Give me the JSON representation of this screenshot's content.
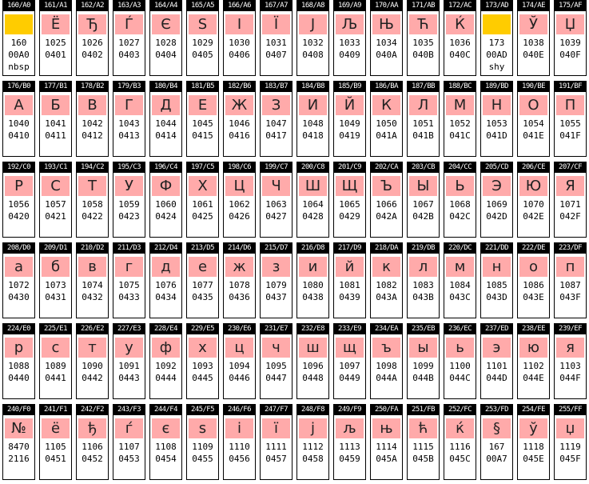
{
  "cells": [
    {
      "header": "160/A0",
      "glyph": "",
      "dec": "160",
      "hex": "00A0",
      "name": "nbsp",
      "special": true
    },
    {
      "header": "161/A1",
      "glyph": "Ё",
      "dec": "1025",
      "hex": "0401",
      "name": ""
    },
    {
      "header": "162/A2",
      "glyph": "Ђ",
      "dec": "1026",
      "hex": "0402",
      "name": ""
    },
    {
      "header": "163/A3",
      "glyph": "Ѓ",
      "dec": "1027",
      "hex": "0403",
      "name": ""
    },
    {
      "header": "164/A4",
      "glyph": "Є",
      "dec": "1028",
      "hex": "0404",
      "name": ""
    },
    {
      "header": "165/A5",
      "glyph": "S",
      "dec": "1029",
      "hex": "0405",
      "name": ""
    },
    {
      "header": "166/A6",
      "glyph": "І",
      "dec": "1030",
      "hex": "0406",
      "name": ""
    },
    {
      "header": "167/A7",
      "glyph": "Ї",
      "dec": "1031",
      "hex": "0407",
      "name": ""
    },
    {
      "header": "168/A8",
      "glyph": "J",
      "dec": "1032",
      "hex": "0408",
      "name": ""
    },
    {
      "header": "169/A9",
      "glyph": "Љ",
      "dec": "1033",
      "hex": "0409",
      "name": ""
    },
    {
      "header": "170/AA",
      "glyph": "Њ",
      "dec": "1034",
      "hex": "040A",
      "name": ""
    },
    {
      "header": "171/AB",
      "glyph": "Ћ",
      "dec": "1035",
      "hex": "040B",
      "name": ""
    },
    {
      "header": "172/AC",
      "glyph": "Ќ",
      "dec": "1036",
      "hex": "040C",
      "name": ""
    },
    {
      "header": "173/AD",
      "glyph": "",
      "dec": "173",
      "hex": "00AD",
      "name": "shy",
      "special": true
    },
    {
      "header": "174/AE",
      "glyph": "Ў",
      "dec": "1038",
      "hex": "040E",
      "name": ""
    },
    {
      "header": "175/AF",
      "glyph": "Џ",
      "dec": "1039",
      "hex": "040F",
      "name": ""
    },
    {
      "header": "176/B0",
      "glyph": "А",
      "dec": "1040",
      "hex": "0410",
      "name": ""
    },
    {
      "header": "177/B1",
      "glyph": "Б",
      "dec": "1041",
      "hex": "0411",
      "name": ""
    },
    {
      "header": "178/B2",
      "glyph": "В",
      "dec": "1042",
      "hex": "0412",
      "name": ""
    },
    {
      "header": "179/B3",
      "glyph": "Г",
      "dec": "1043",
      "hex": "0413",
      "name": ""
    },
    {
      "header": "180/B4",
      "glyph": "Д",
      "dec": "1044",
      "hex": "0414",
      "name": ""
    },
    {
      "header": "181/B5",
      "glyph": "Е",
      "dec": "1045",
      "hex": "0415",
      "name": ""
    },
    {
      "header": "182/B6",
      "glyph": "Ж",
      "dec": "1046",
      "hex": "0416",
      "name": ""
    },
    {
      "header": "183/B7",
      "glyph": "З",
      "dec": "1047",
      "hex": "0417",
      "name": ""
    },
    {
      "header": "184/B8",
      "glyph": "И",
      "dec": "1048",
      "hex": "0418",
      "name": ""
    },
    {
      "header": "185/B9",
      "glyph": "Й",
      "dec": "1049",
      "hex": "0419",
      "name": ""
    },
    {
      "header": "186/BA",
      "glyph": "К",
      "dec": "1050",
      "hex": "041A",
      "name": ""
    },
    {
      "header": "187/BB",
      "glyph": "Л",
      "dec": "1051",
      "hex": "041B",
      "name": ""
    },
    {
      "header": "188/BC",
      "glyph": "М",
      "dec": "1052",
      "hex": "041C",
      "name": ""
    },
    {
      "header": "189/BD",
      "glyph": "Н",
      "dec": "1053",
      "hex": "041D",
      "name": ""
    },
    {
      "header": "190/BE",
      "glyph": "О",
      "dec": "1054",
      "hex": "041E",
      "name": ""
    },
    {
      "header": "191/BF",
      "glyph": "П",
      "dec": "1055",
      "hex": "041F",
      "name": ""
    },
    {
      "header": "192/C0",
      "glyph": "Р",
      "dec": "1056",
      "hex": "0420",
      "name": ""
    },
    {
      "header": "193/C1",
      "glyph": "С",
      "dec": "1057",
      "hex": "0421",
      "name": ""
    },
    {
      "header": "194/C2",
      "glyph": "Т",
      "dec": "1058",
      "hex": "0422",
      "name": ""
    },
    {
      "header": "195/C3",
      "glyph": "У",
      "dec": "1059",
      "hex": "0423",
      "name": ""
    },
    {
      "header": "196/C4",
      "glyph": "Ф",
      "dec": "1060",
      "hex": "0424",
      "name": ""
    },
    {
      "header": "197/C5",
      "glyph": "Х",
      "dec": "1061",
      "hex": "0425",
      "name": ""
    },
    {
      "header": "198/C6",
      "glyph": "Ц",
      "dec": "1062",
      "hex": "0426",
      "name": ""
    },
    {
      "header": "199/C7",
      "glyph": "Ч",
      "dec": "1063",
      "hex": "0427",
      "name": ""
    },
    {
      "header": "200/C8",
      "glyph": "Ш",
      "dec": "1064",
      "hex": "0428",
      "name": ""
    },
    {
      "header": "201/C9",
      "glyph": "Щ",
      "dec": "1065",
      "hex": "0429",
      "name": ""
    },
    {
      "header": "202/CA",
      "glyph": "Ъ",
      "dec": "1066",
      "hex": "042A",
      "name": ""
    },
    {
      "header": "203/CB",
      "glyph": "Ы",
      "dec": "1067",
      "hex": "042B",
      "name": ""
    },
    {
      "header": "204/CC",
      "glyph": "Ь",
      "dec": "1068",
      "hex": "042C",
      "name": ""
    },
    {
      "header": "205/CD",
      "glyph": "Э",
      "dec": "1069",
      "hex": "042D",
      "name": ""
    },
    {
      "header": "206/CE",
      "glyph": "Ю",
      "dec": "1070",
      "hex": "042E",
      "name": ""
    },
    {
      "header": "207/CF",
      "glyph": "Я",
      "dec": "1071",
      "hex": "042F",
      "name": ""
    },
    {
      "header": "208/D0",
      "glyph": "а",
      "dec": "1072",
      "hex": "0430",
      "name": ""
    },
    {
      "header": "209/D1",
      "glyph": "б",
      "dec": "1073",
      "hex": "0431",
      "name": ""
    },
    {
      "header": "210/D2",
      "glyph": "в",
      "dec": "1074",
      "hex": "0432",
      "name": ""
    },
    {
      "header": "211/D3",
      "glyph": "г",
      "dec": "1075",
      "hex": "0433",
      "name": ""
    },
    {
      "header": "212/D4",
      "glyph": "д",
      "dec": "1076",
      "hex": "0434",
      "name": ""
    },
    {
      "header": "213/D5",
      "glyph": "е",
      "dec": "1077",
      "hex": "0435",
      "name": ""
    },
    {
      "header": "214/D6",
      "glyph": "ж",
      "dec": "1078",
      "hex": "0436",
      "name": ""
    },
    {
      "header": "215/D7",
      "glyph": "з",
      "dec": "1079",
      "hex": "0437",
      "name": ""
    },
    {
      "header": "216/D8",
      "glyph": "и",
      "dec": "1080",
      "hex": "0438",
      "name": ""
    },
    {
      "header": "217/D9",
      "glyph": "й",
      "dec": "1081",
      "hex": "0439",
      "name": ""
    },
    {
      "header": "218/DA",
      "glyph": "к",
      "dec": "1082",
      "hex": "043A",
      "name": ""
    },
    {
      "header": "219/DB",
      "glyph": "л",
      "dec": "1083",
      "hex": "043B",
      "name": ""
    },
    {
      "header": "220/DC",
      "glyph": "м",
      "dec": "1084",
      "hex": "043C",
      "name": ""
    },
    {
      "header": "221/DD",
      "glyph": "н",
      "dec": "1085",
      "hex": "043D",
      "name": ""
    },
    {
      "header": "222/DE",
      "glyph": "о",
      "dec": "1086",
      "hex": "043E",
      "name": ""
    },
    {
      "header": "223/DF",
      "glyph": "п",
      "dec": "1087",
      "hex": "043F",
      "name": ""
    },
    {
      "header": "224/E0",
      "glyph": "р",
      "dec": "1088",
      "hex": "0440",
      "name": ""
    },
    {
      "header": "225/E1",
      "glyph": "с",
      "dec": "1089",
      "hex": "0441",
      "name": ""
    },
    {
      "header": "226/E2",
      "glyph": "т",
      "dec": "1090",
      "hex": "0442",
      "name": ""
    },
    {
      "header": "227/E3",
      "glyph": "у",
      "dec": "1091",
      "hex": "0443",
      "name": ""
    },
    {
      "header": "228/E4",
      "glyph": "ф",
      "dec": "1092",
      "hex": "0444",
      "name": ""
    },
    {
      "header": "229/E5",
      "glyph": "х",
      "dec": "1093",
      "hex": "0445",
      "name": ""
    },
    {
      "header": "230/E6",
      "glyph": "ц",
      "dec": "1094",
      "hex": "0446",
      "name": ""
    },
    {
      "header": "231/E7",
      "glyph": "ч",
      "dec": "1095",
      "hex": "0447",
      "name": ""
    },
    {
      "header": "232/E8",
      "glyph": "ш",
      "dec": "1096",
      "hex": "0448",
      "name": ""
    },
    {
      "header": "233/E9",
      "glyph": "щ",
      "dec": "1097",
      "hex": "0449",
      "name": ""
    },
    {
      "header": "234/EA",
      "glyph": "ъ",
      "dec": "1098",
      "hex": "044A",
      "name": ""
    },
    {
      "header": "235/EB",
      "glyph": "ы",
      "dec": "1099",
      "hex": "044B",
      "name": ""
    },
    {
      "header": "236/EC",
      "glyph": "ь",
      "dec": "1100",
      "hex": "044C",
      "name": ""
    },
    {
      "header": "237/ED",
      "glyph": "э",
      "dec": "1101",
      "hex": "044D",
      "name": ""
    },
    {
      "header": "238/EE",
      "glyph": "ю",
      "dec": "1102",
      "hex": "044E",
      "name": ""
    },
    {
      "header": "239/EF",
      "glyph": "я",
      "dec": "1103",
      "hex": "044F",
      "name": ""
    },
    {
      "header": "240/F0",
      "glyph": "№",
      "dec": "8470",
      "hex": "2116",
      "name": ""
    },
    {
      "header": "241/F1",
      "glyph": "ё",
      "dec": "1105",
      "hex": "0451",
      "name": ""
    },
    {
      "header": "242/F2",
      "glyph": "ђ",
      "dec": "1106",
      "hex": "0452",
      "name": ""
    },
    {
      "header": "243/F3",
      "glyph": "ѓ",
      "dec": "1107",
      "hex": "0453",
      "name": ""
    },
    {
      "header": "244/F4",
      "glyph": "є",
      "dec": "1108",
      "hex": "0454",
      "name": ""
    },
    {
      "header": "245/F5",
      "glyph": "s",
      "dec": "1109",
      "hex": "0455",
      "name": ""
    },
    {
      "header": "246/F6",
      "glyph": "і",
      "dec": "1110",
      "hex": "0456",
      "name": ""
    },
    {
      "header": "247/F7",
      "glyph": "ї",
      "dec": "1111",
      "hex": "0457",
      "name": ""
    },
    {
      "header": "248/F8",
      "glyph": "j",
      "dec": "1112",
      "hex": "0458",
      "name": ""
    },
    {
      "header": "249/F9",
      "glyph": "љ",
      "dec": "1113",
      "hex": "0459",
      "name": ""
    },
    {
      "header": "250/FA",
      "glyph": "њ",
      "dec": "1114",
      "hex": "045A",
      "name": ""
    },
    {
      "header": "251/FB",
      "glyph": "ћ",
      "dec": "1115",
      "hex": "045B",
      "name": ""
    },
    {
      "header": "252/FC",
      "glyph": "ќ",
      "dec": "1116",
      "hex": "045C",
      "name": ""
    },
    {
      "header": "253/FD",
      "glyph": "§",
      "dec": "167",
      "hex": "00A7",
      "name": ""
    },
    {
      "header": "254/FE",
      "glyph": "ў",
      "dec": "1118",
      "hex": "045E",
      "name": ""
    },
    {
      "header": "255/FF",
      "glyph": "џ",
      "dec": "1119",
      "hex": "045F",
      "name": ""
    }
  ],
  "colors": {
    "glyph_bg": "#ffaaaa",
    "special_bg": "#ffcc00",
    "header_bg": "#000000"
  }
}
